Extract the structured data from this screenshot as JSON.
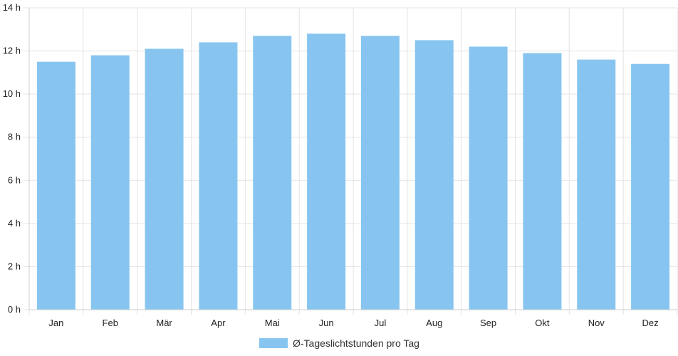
{
  "chart_data": {
    "type": "bar",
    "categories": [
      "Jan",
      "Feb",
      "Mär",
      "Apr",
      "Mai",
      "Jun",
      "Jul",
      "Aug",
      "Sep",
      "Okt",
      "Nov",
      "Dez"
    ],
    "series": [
      {
        "name": "Ø-Tageslichtstunden pro Tag",
        "values": [
          11.5,
          11.8,
          12.1,
          12.4,
          12.7,
          12.8,
          12.7,
          12.5,
          12.2,
          11.9,
          11.6,
          11.4
        ],
        "color": "#87c5f0"
      }
    ],
    "y_ticks": [
      "0 h",
      "2 h",
      "4 h",
      "6 h",
      "8 h",
      "10 h",
      "12 h",
      "14 h"
    ],
    "ylim": [
      0,
      14
    ],
    "grid": true,
    "legend_position": "bottom"
  }
}
